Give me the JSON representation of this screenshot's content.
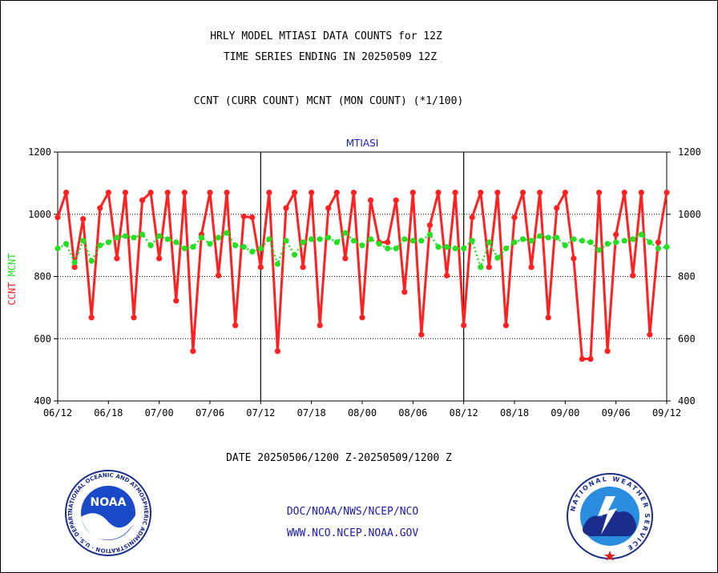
{
  "header": {
    "title_line1": "HRLY MODEL MTIASI DATA COUNTS for 12Z",
    "title_line2": "TIME SERIES ENDING IN 20250509 12Z",
    "subtitle": "CCNT (CURR COUNT) MCNT (MON COUNT) (*1/100)"
  },
  "footer": {
    "date_range": "DATE 20250506/1200 Z-20250509/1200 Z",
    "link1": "DOC/NOAA/NWS/NCEP/NCO",
    "link2": "WWW.NCO.NCEP.NOAA.GOV"
  },
  "logos": {
    "noaa_text": "NOAA",
    "noaa_ring": "NATIONAL OCEANIC AND ATMOSPHERIC ADMINISTRATION · U.S. DEPARTMENT OF COMMERCE ·",
    "nws_ring": "NATIONAL WEATHER SERVICE"
  },
  "colors": {
    "ccnt": "#ff2020",
    "mcnt": "#22e022",
    "link": "#1a1ab4",
    "axis": "#000000"
  },
  "chart_data": {
    "type": "line",
    "title": "MTIASI",
    "ylabel_left_parts": [
      {
        "text": "CCNT",
        "color": "#ff2020"
      },
      {
        "text": "MCNT",
        "color": "#22e022"
      }
    ],
    "ylim": [
      400,
      1200
    ],
    "yticks": [
      400,
      600,
      800,
      1000,
      1200
    ],
    "xticks": [
      "06/12",
      "06/18",
      "07/00",
      "07/06",
      "07/12",
      "07/18",
      "08/00",
      "08/06",
      "08/12",
      "08/18",
      "09/00",
      "09/06",
      "09/12"
    ],
    "hour_range": [
      0,
      72
    ],
    "day_boundaries": [
      24,
      48
    ],
    "gridlines_y": [
      600,
      800,
      1000
    ],
    "series": [
      {
        "name": "CCNT",
        "values": [
          990,
          1070,
          830,
          985,
          668,
          1020,
          1070,
          858,
          1070,
          668,
          1045,
          1070,
          858,
          1070,
          722,
          1070,
          560,
          935,
          1070,
          803,
          1070,
          643,
          993,
          990,
          830,
          1070,
          560,
          1020,
          1070,
          830,
          1070,
          643,
          1020,
          1070,
          858,
          1070,
          668,
          1045,
          910,
          910,
          1045,
          750,
          1070,
          613,
          965,
          1070,
          803,
          1070,
          643,
          990,
          1070,
          830,
          1070,
          643,
          990,
          1070,
          830,
          1070,
          668,
          1020,
          1070,
          858,
          535,
          535,
          1070,
          560,
          935,
          1070,
          803,
          1070,
          613,
          910,
          1070
        ]
      },
      {
        "name": "MCNT",
        "values": [
          890,
          905,
          845,
          915,
          850,
          900,
          910,
          925,
          930,
          925,
          935,
          900,
          930,
          920,
          910,
          890,
          895,
          925,
          905,
          925,
          940,
          900,
          895,
          880,
          890,
          920,
          840,
          915,
          870,
          910,
          920,
          920,
          925,
          910,
          940,
          915,
          900,
          920,
          905,
          890,
          890,
          920,
          915,
          915,
          935,
          895,
          895,
          890,
          890,
          915,
          830,
          910,
          860,
          890,
          910,
          920,
          915,
          930,
          925,
          925,
          900,
          920,
          915,
          910,
          885,
          905,
          910,
          915,
          920,
          935,
          910,
          890,
          895
        ]
      }
    ]
  }
}
